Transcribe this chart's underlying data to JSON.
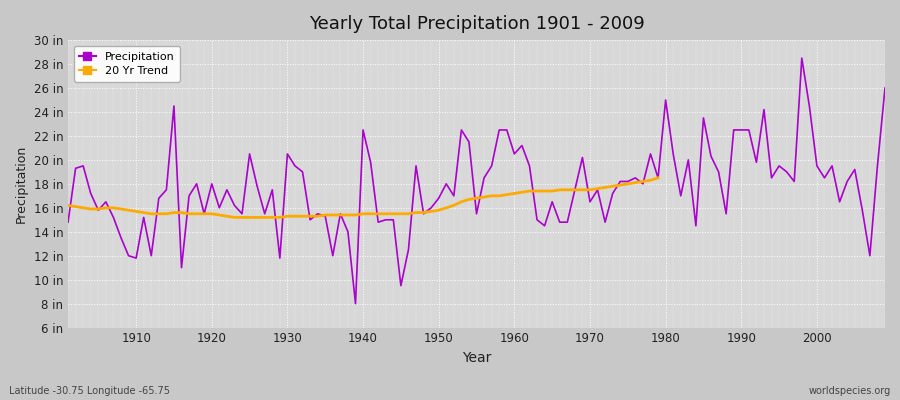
{
  "title": "Yearly Total Precipitation 1901 - 2009",
  "xlabel": "Year",
  "ylabel": "Precipitation",
  "subtitle": "Latitude -30.75 Longitude -65.75",
  "watermark": "worldspecies.org",
  "background_color": "#c8c8c8",
  "plot_bg_color": "#d8d8d8",
  "precip_color": "#aa00cc",
  "trend_color": "#ffaa00",
  "ylim": [
    6,
    30
  ],
  "yticks": [
    6,
    8,
    10,
    12,
    14,
    16,
    18,
    20,
    22,
    24,
    26,
    28,
    30
  ],
  "xlim": [
    1901,
    2009
  ],
  "years": [
    1901,
    1902,
    1903,
    1904,
    1905,
    1906,
    1907,
    1908,
    1909,
    1910,
    1911,
    1912,
    1913,
    1914,
    1915,
    1916,
    1917,
    1918,
    1919,
    1920,
    1921,
    1922,
    1923,
    1924,
    1925,
    1926,
    1927,
    1928,
    1929,
    1930,
    1931,
    1932,
    1933,
    1934,
    1935,
    1936,
    1937,
    1938,
    1939,
    1940,
    1941,
    1942,
    1943,
    1944,
    1945,
    1946,
    1947,
    1948,
    1949,
    1950,
    1951,
    1952,
    1953,
    1954,
    1955,
    1956,
    1957,
    1958,
    1959,
    1960,
    1961,
    1962,
    1963,
    1964,
    1965,
    1966,
    1967,
    1968,
    1969,
    1970,
    1971,
    1972,
    1973,
    1974,
    1975,
    1976,
    1977,
    1978,
    1979,
    1980,
    1981,
    1982,
    1983,
    1984,
    1985,
    1986,
    1987,
    1988,
    1989,
    1990,
    1991,
    1992,
    1993,
    1994,
    1995,
    1996,
    1997,
    1998,
    1999,
    2000,
    2001,
    2002,
    2003,
    2004,
    2005,
    2006,
    2007,
    2008,
    2009
  ],
  "precip": [
    14.8,
    19.3,
    19.5,
    17.2,
    15.8,
    16.5,
    15.2,
    13.5,
    12.0,
    11.8,
    15.2,
    12.0,
    16.8,
    17.5,
    24.5,
    11.0,
    17.0,
    18.0,
    15.5,
    18.0,
    16.0,
    17.5,
    16.2,
    15.5,
    20.5,
    17.8,
    15.5,
    17.5,
    11.8,
    20.5,
    19.5,
    19.0,
    15.0,
    15.5,
    15.3,
    12.0,
    15.5,
    14.0,
    8.0,
    22.5,
    19.8,
    14.8,
    15.0,
    15.0,
    9.5,
    12.5,
    19.5,
    15.5,
    16.0,
    16.8,
    18.0,
    17.0,
    22.5,
    21.5,
    15.5,
    18.5,
    19.5,
    22.5,
    22.5,
    20.5,
    21.2,
    19.5,
    15.0,
    14.5,
    16.5,
    14.8,
    14.8,
    17.5,
    20.2,
    16.5,
    17.5,
    14.8,
    17.2,
    18.2,
    18.2,
    18.5,
    18.0,
    20.5,
    18.5,
    25.0,
    20.5,
    17.0,
    20.0,
    14.5,
    23.5,
    20.3,
    19.0,
    15.5,
    22.5,
    22.5,
    22.5,
    19.8,
    24.2,
    18.5,
    19.5,
    19.0,
    18.2,
    28.5,
    24.5,
    19.5,
    18.5,
    19.5,
    16.5,
    18.2,
    19.2,
    15.8,
    12.0,
    19.5,
    26.0
  ],
  "trend_years": [
    1901,
    1902,
    1903,
    1904,
    1905,
    1906,
    1907,
    1908,
    1909,
    1910,
    1911,
    1912,
    1913,
    1914,
    1915,
    1916,
    1917,
    1918,
    1919,
    1920,
    1921,
    1922,
    1923,
    1924,
    1925,
    1926,
    1927,
    1928,
    1929,
    1930,
    1931,
    1932,
    1933,
    1934,
    1935,
    1936,
    1937,
    1938,
    1939,
    1940,
    1941,
    1942,
    1943,
    1944,
    1945,
    1946,
    1947,
    1948,
    1949,
    1950,
    1951,
    1952,
    1953,
    1954,
    1955,
    1956,
    1957,
    1958,
    1959,
    1960,
    1961,
    1962,
    1963,
    1964,
    1965,
    1966,
    1967,
    1968,
    1969,
    1970,
    1971,
    1972,
    1973,
    1974,
    1975,
    1976,
    1977,
    1978,
    1979
  ],
  "trend": [
    16.2,
    16.1,
    16.0,
    15.9,
    15.9,
    16.0,
    16.0,
    15.9,
    15.8,
    15.7,
    15.6,
    15.5,
    15.5,
    15.5,
    15.6,
    15.6,
    15.5,
    15.5,
    15.5,
    15.5,
    15.4,
    15.3,
    15.2,
    15.2,
    15.2,
    15.2,
    15.2,
    15.2,
    15.2,
    15.3,
    15.3,
    15.3,
    15.3,
    15.3,
    15.4,
    15.4,
    15.4,
    15.4,
    15.4,
    15.5,
    15.5,
    15.5,
    15.5,
    15.5,
    15.5,
    15.5,
    15.6,
    15.6,
    15.7,
    15.8,
    16.0,
    16.2,
    16.5,
    16.7,
    16.8,
    16.9,
    17.0,
    17.0,
    17.1,
    17.2,
    17.3,
    17.4,
    17.4,
    17.4,
    17.4,
    17.5,
    17.5,
    17.5,
    17.5,
    17.5,
    17.6,
    17.7,
    17.8,
    17.9,
    18.0,
    18.1,
    18.2,
    18.3,
    18.5
  ]
}
